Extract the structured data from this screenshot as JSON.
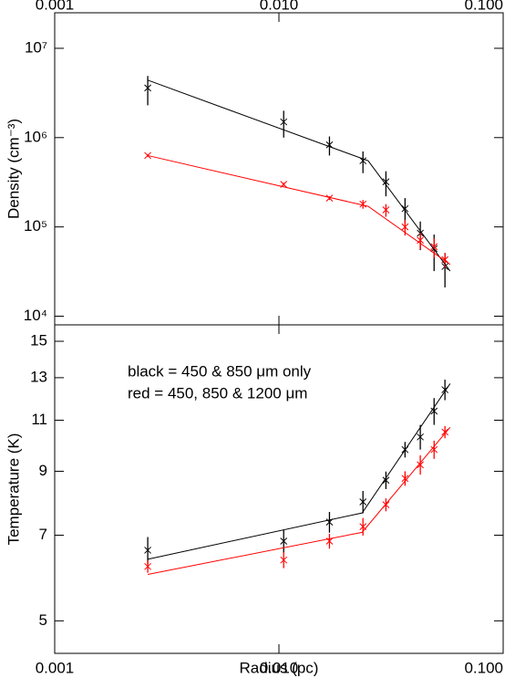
{
  "chart_data": [
    {
      "type": "line",
      "ylabel": "Density (cm⁻³)",
      "xscale": "log",
      "yscale": "log",
      "xaxis_position": "top",
      "xlim": [
        0.001,
        0.1
      ],
      "xticks": [
        0.001,
        {
          "value": 0.01,
          "label": "0.010"
        },
        {
          "value": 0.1,
          "label": "0.100"
        }
      ],
      "ylim": [
        8000,
        25000000
      ],
      "yticks": [
        {
          "value": 10000,
          "label": "10⁴"
        },
        {
          "value": 100000,
          "label": "10⁵"
        },
        {
          "value": 1000000,
          "label": "10⁶"
        },
        {
          "value": 10000000,
          "label": "10⁷"
        }
      ],
      "series": [
        {
          "style": "points",
          "color": "#000000",
          "x": [
            0.0026,
            0.0105,
            0.0168,
            0.0237,
            0.03,
            0.0365,
            0.0427,
            0.0492,
            0.055
          ],
          "values": [
            3600000,
            1500000,
            830000,
            550000,
            320000,
            160000,
            85000,
            57000,
            36000
          ],
          "errors": [
            1300000,
            500000,
            200000,
            150000,
            100000,
            50000,
            30000,
            25000,
            15000
          ]
        },
        {
          "style": "points",
          "color": "#ff0000",
          "x": [
            0.0026,
            0.0105,
            0.0168,
            0.0237,
            0.03,
            0.0365,
            0.0427,
            0.0492,
            0.055
          ],
          "values": [
            630000,
            300000,
            210000,
            180000,
            155000,
            100000,
            71000,
            60000,
            43000
          ],
          "errors": [
            20000,
            12000,
            10000,
            20000,
            25000,
            20000,
            15000,
            15000,
            8000
          ]
        },
        {
          "style": "line",
          "color": "#000000",
          "x": [
            0.0026,
            0.025,
            0.058
          ],
          "values": [
            4400000,
            550000,
            32000
          ]
        },
        {
          "style": "line",
          "color": "#ff0000",
          "x": [
            0.0026,
            0.025,
            0.058
          ],
          "values": [
            630000,
            170000,
            38000
          ]
        }
      ]
    },
    {
      "type": "line",
      "ylabel": "Temperature (K)",
      "xlabel": "Radius (pc)",
      "xscale": "log",
      "yscale": "log",
      "xaxis_position": "bottom",
      "xlim": [
        0.001,
        0.1
      ],
      "xticks": [
        0.001,
        {
          "value": 0.01,
          "label": "0.010"
        },
        {
          "value": 0.1,
          "label": "0.100"
        }
      ],
      "ylim": [
        4.4,
        16
      ],
      "yticks": [
        5,
        7,
        9,
        11,
        13,
        15
      ],
      "annotations": [
        {
          "text": "black = 450 & 850 μm only",
          "color": "#000000"
        },
        {
          "text": "red = 450, 850 & 1200 μm",
          "color": "#ff0000"
        }
      ],
      "series": [
        {
          "style": "points",
          "color": "#000000",
          "x": [
            0.0026,
            0.0105,
            0.0168,
            0.0237,
            0.03,
            0.0365,
            0.0427,
            0.0492,
            0.055
          ],
          "values": [
            6.6,
            6.84,
            7.37,
            7.98,
            8.69,
            9.8,
            10.3,
            11.4,
            12.4
          ],
          "errors": [
            0.35,
            0.3,
            0.3,
            0.35,
            0.3,
            0.3,
            0.5,
            0.6,
            0.5
          ]
        },
        {
          "style": "points",
          "color": "#ff0000",
          "x": [
            0.0026,
            0.0105,
            0.0168,
            0.0237,
            0.03,
            0.0365,
            0.0427,
            0.0492,
            0.055
          ],
          "values": [
            6.19,
            6.35,
            6.84,
            7.24,
            7.89,
            8.75,
            9.23,
            9.8,
            10.5
          ],
          "errors": [
            0.15,
            0.2,
            0.2,
            0.25,
            0.2,
            0.25,
            0.35,
            0.35,
            0.25
          ]
        },
        {
          "style": "line",
          "color": "#000000",
          "x": [
            0.0026,
            0.0235,
            0.058
          ],
          "values": [
            6.37,
            7.64,
            12.7
          ]
        },
        {
          "style": "line",
          "color": "#ff0000",
          "x": [
            0.0026,
            0.0235,
            0.058
          ],
          "values": [
            6.0,
            7.08,
            10.7
          ]
        }
      ]
    }
  ]
}
